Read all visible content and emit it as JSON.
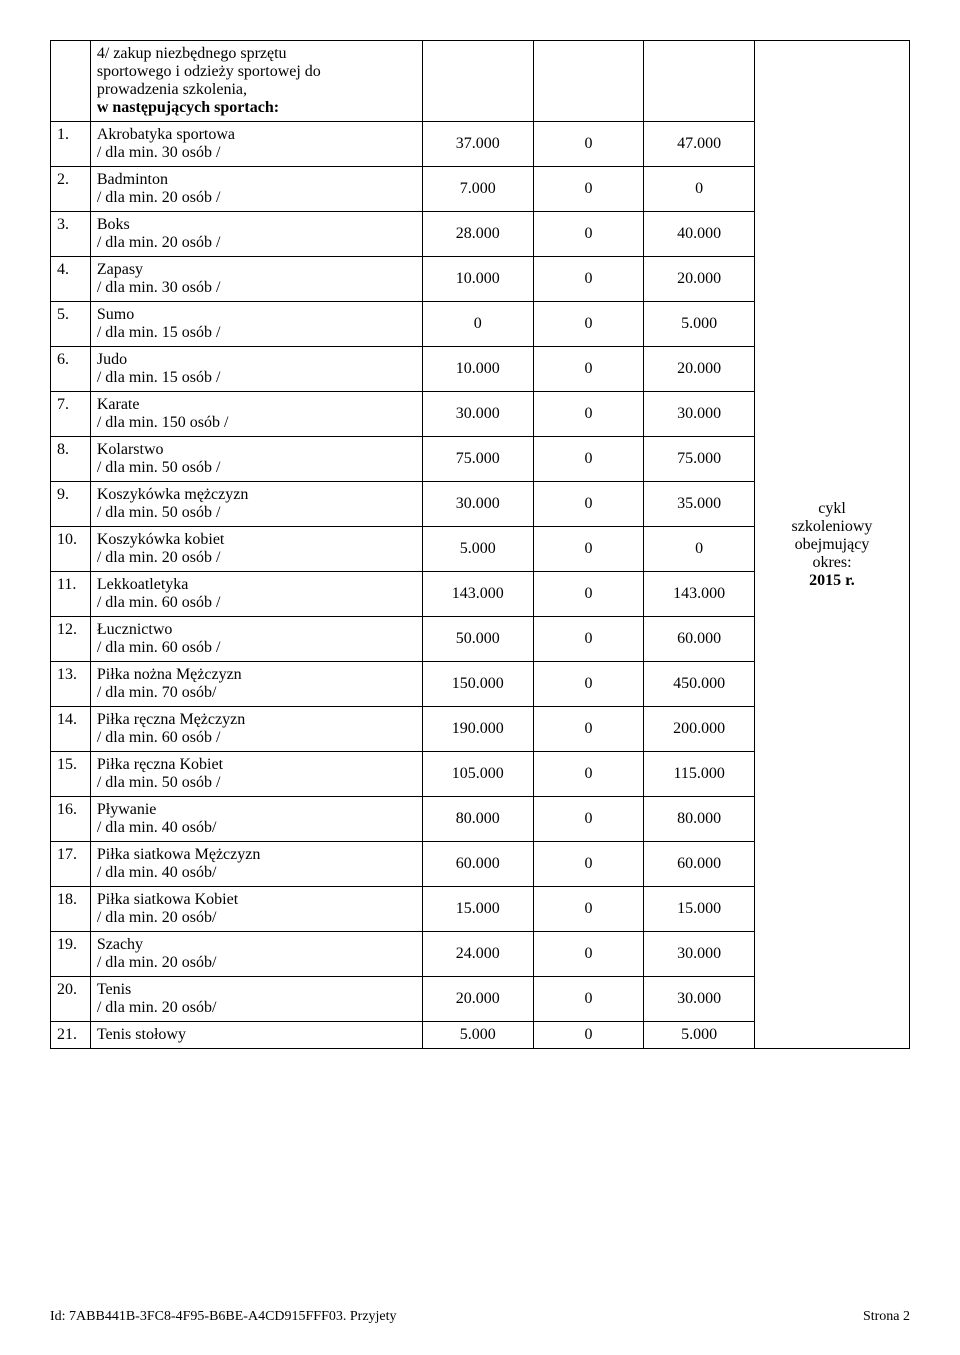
{
  "header": {
    "line1": "4/  zakup niezbędnego sprzętu",
    "line2": "sportowego i odzieży sportowej do",
    "line3": "prowadzenia szkolenia,",
    "line4": "w następujących sportach:"
  },
  "rows": [
    {
      "n": "1.",
      "name": "Akrobatyka  sportowa",
      "sub": "/ dla min. 30 osób /",
      "c1": "37.000",
      "c2": "0",
      "c3": "47.000"
    },
    {
      "n": "2.",
      "name": "Badminton",
      "sub": "/ dla min. 20 osób /",
      "c1": "7.000",
      "c2": "0",
      "c3": "0"
    },
    {
      "n": "3.",
      "name": "Boks",
      "sub": "/ dla min. 20 osób /",
      "c1": "28.000",
      "c2": "0",
      "c3": "40.000"
    },
    {
      "n": "4.",
      "name": "Zapasy",
      "sub": "/ dla min. 30 osób /",
      "c1": "10.000",
      "c2": "0",
      "c3": "20.000"
    },
    {
      "n": "5.",
      "name": "Sumo",
      "sub": "/ dla min. 15 osób /",
      "c1": "0",
      "c2": "0",
      "c3": "5.000"
    },
    {
      "n": "6.",
      "name": "Judo",
      "sub": "/ dla min. 15 osób /",
      "c1": "10.000",
      "c2": "0",
      "c3": "20.000"
    },
    {
      "n": "7.",
      "name": "Karate",
      "sub": "/ dla min. 150 osób /",
      "c1": "30.000",
      "c2": "0",
      "c3": "30.000"
    },
    {
      "n": "8.",
      "name": "Kolarstwo",
      "sub": "/ dla min. 50 osób /",
      "c1": "75.000",
      "c2": "0",
      "c3": "75.000"
    },
    {
      "n": "9.",
      "name": "Koszykówka mężczyzn",
      "sub": "/ dla min. 50 osób /",
      "c1": "30.000",
      "c2": "0",
      "c3": "35.000"
    },
    {
      "n": "10.",
      "name": "Koszykówka kobiet",
      "sub": "/ dla min. 20 osób /",
      "c1": "5.000",
      "c2": "0",
      "c3": "0"
    },
    {
      "n": "11.",
      "name": "Lekkoatletyka",
      "sub": "/ dla min. 60 osób /",
      "c1": "143.000",
      "c2": "0",
      "c3": "143.000"
    },
    {
      "n": "12.",
      "name": "Łucznictwo",
      "sub": "/ dla min. 60 osób /",
      "c1": "50.000",
      "c2": "0",
      "c3": "60.000"
    },
    {
      "n": "13.",
      "name": "Piłka nożna  Mężczyzn",
      "sub": "/ dla min. 70 osób/",
      "c1": "150.000",
      "c2": "0",
      "c3": "450.000"
    },
    {
      "n": "14.",
      "name": "Piłka ręczna  Mężczyzn",
      "sub": "/ dla min. 60 osób /",
      "c1": "190.000",
      "c2": "0",
      "c3": "200.000"
    },
    {
      "n": "15.",
      "name": "Piłka ręczna  Kobiet",
      "sub": "/ dla min. 50 osób /",
      "c1": "105.000",
      "c2": "0",
      "c3": "115.000"
    },
    {
      "n": "16.",
      "name": "Pływanie",
      "sub": "/ dla min. 40 osób/",
      "c1": "80.000",
      "c2": "0",
      "c3": "80.000"
    },
    {
      "n": "17.",
      "name": "Piłka siatkowa  Mężczyzn",
      "sub": "/ dla min. 40 osób/",
      "c1": "60.000",
      "c2": "0",
      "c3": "60.000"
    },
    {
      "n": "18.",
      "name": "Piłka siatkowa  Kobiet",
      "sub": "/ dla min. 20 osób/",
      "c1": "15.000",
      "c2": "0",
      "c3": "15.000"
    },
    {
      "n": "19.",
      "name": "Szachy",
      "sub": "/ dla min. 20 osób/",
      "c1": "24.000",
      "c2": "0",
      "c3": "30.000"
    },
    {
      "n": "20.",
      "name": "Tenis",
      "sub": "/ dla min. 20 osób/",
      "c1": "20.000",
      "c2": "0",
      "c3": "30.000"
    },
    {
      "n": "21.",
      "name": "Tenis stołowy",
      "sub": "",
      "c1": "5.000",
      "c2": "0",
      "c3": "5.000"
    }
  ],
  "note": {
    "l1": "cykl",
    "l2": "szkoleniowy",
    "l3": "obejmujący",
    "l4": "okres:",
    "l5": "2015 r."
  },
  "footer": {
    "left": "Id: 7ABB441B-3FC8-4F95-B6BE-A4CD915FFF03. Przyjety",
    "right": "Strona 2"
  }
}
